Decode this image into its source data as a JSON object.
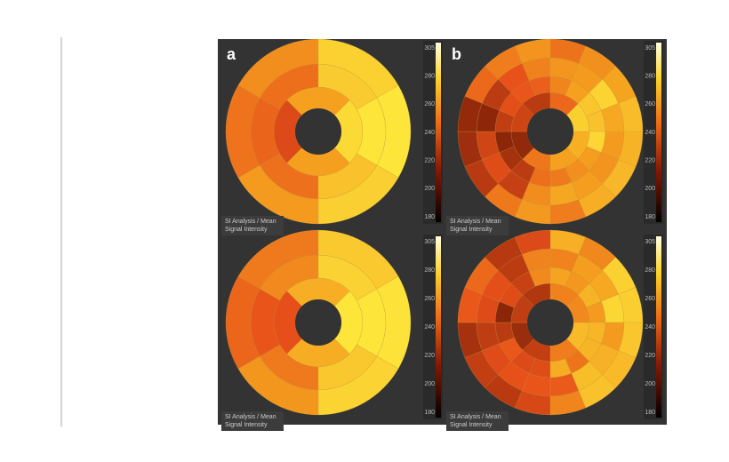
{
  "panels": [
    {
      "label": "a",
      "caption": [
        "SI Analysis / Mean",
        "Signal Intensity"
      ],
      "colorbar_ticks": [
        "305",
        "280",
        "260",
        "240",
        "220",
        "200",
        "180"
      ]
    },
    {
      "label": "b",
      "caption": [
        "SI Analysis / Mean",
        "Signal Intensity"
      ],
      "colorbar_ticks": [
        "305",
        "280",
        "260",
        "240",
        "220",
        "200",
        "180"
      ]
    },
    {
      "caption": [
        "SI Analysis / Mean",
        "Signal Intensity"
      ],
      "colorbar_ticks": [
        "305",
        "280",
        "260",
        "240",
        "220",
        "200",
        "180"
      ]
    },
    {
      "caption": [
        "SI Analysis / Mean",
        "Signal Intensity"
      ],
      "colorbar_ticks": [
        "305",
        "280",
        "260",
        "240",
        "220",
        "200",
        "180"
      ]
    }
  ]
}
